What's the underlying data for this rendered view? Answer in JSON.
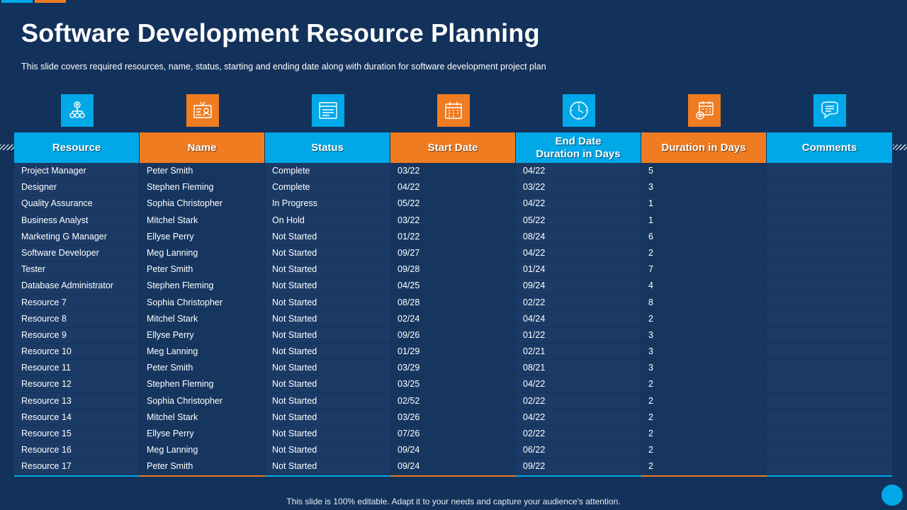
{
  "colors": {
    "blue": "#00a8e8",
    "orange": "#f07c22",
    "background": "#13325b"
  },
  "title": "Software Development Resource Planning",
  "subtitle": "This slide covers required resources, name, status, starting and ending date along with duration for software development  project plan",
  "icons": [
    {
      "name": "network-gear-icon",
      "color": "#00a8e8"
    },
    {
      "name": "id-card-icon",
      "color": "#f07c22"
    },
    {
      "name": "status-board-icon",
      "color": "#00a8e8"
    },
    {
      "name": "calendar-icon",
      "color": "#f07c22"
    },
    {
      "name": "clock-icon",
      "color": "#00a8e8"
    },
    {
      "name": "calendar-gear-icon",
      "color": "#f07c22"
    },
    {
      "name": "chat-bubble-icon",
      "color": "#00a8e8"
    }
  ],
  "table": {
    "headers": [
      "Resource",
      "Name",
      "Status",
      "Start Date",
      "End Date\nDuration in Days",
      "Duration in Days",
      "Comments"
    ],
    "header_colors": [
      "#00a8e8",
      "#f07c22",
      "#00a8e8",
      "#f07c22",
      "#00a8e8",
      "#f07c22",
      "#00a8e8"
    ],
    "rows": [
      [
        "Project Manager",
        "Peter Smith",
        "Complete",
        "03/22",
        "04/22",
        "5",
        ""
      ],
      [
        "Designer",
        "Stephen Fleming",
        "Complete",
        "04/22",
        "03/22",
        "3",
        ""
      ],
      [
        "Quality Assurance",
        "Sophia Christopher",
        "In Progress",
        "05/22",
        "04/22",
        "1",
        ""
      ],
      [
        "Business Analyst",
        "Mitchel Stark",
        "On Hold",
        "03/22",
        "05/22",
        "1",
        ""
      ],
      [
        "Marketing G Manager",
        "Ellyse Perry",
        "Not Started",
        "01/22",
        "08/24",
        "6",
        ""
      ],
      [
        "Software Developer",
        "Meg Lanning",
        "Not Started",
        "09/27",
        "04/22",
        "2",
        ""
      ],
      [
        "Tester",
        "Peter Smith",
        "Not Started",
        "09/28",
        "01/24",
        "7",
        ""
      ],
      [
        "Database Administrator",
        "Stephen Fleming",
        "Not Started",
        "04/25",
        "09/24",
        "4",
        ""
      ],
      [
        "Resource 7",
        "Sophia Christopher",
        "Not Started",
        "08/28",
        "02/22",
        "8",
        ""
      ],
      [
        "Resource 8",
        "Mitchel Stark",
        "Not Started",
        "02/24",
        "04/24",
        "2",
        ""
      ],
      [
        "Resource 9",
        "Ellyse Perry",
        "Not Started",
        "09/26",
        "01/22",
        "3",
        ""
      ],
      [
        "Resource 10",
        "Meg Lanning",
        "Not Started",
        "01/29",
        "02/21",
        "3",
        ""
      ],
      [
        "Resource 11",
        "Peter Smith",
        "Not Started",
        "03/29",
        "08/21",
        "3",
        ""
      ],
      [
        "Resource 12",
        "Stephen Fleming",
        "Not Started",
        "03/25",
        "04/22",
        "2",
        ""
      ],
      [
        "Resource 13",
        "Sophia Christopher",
        "Not Started",
        "02/52",
        "02/22",
        "2",
        ""
      ],
      [
        "Resource 14",
        "Mitchel Stark",
        "Not Started",
        "03/26",
        "04/22",
        "2",
        ""
      ],
      [
        "Resource 15",
        "Ellyse Perry",
        "Not Started",
        "07/26",
        "02/22",
        "2",
        ""
      ],
      [
        "Resource 16",
        "Meg Lanning",
        "Not Started",
        "09/24",
        "06/22",
        "2",
        ""
      ],
      [
        "Resource 17",
        "Peter Smith",
        "Not Started",
        "09/24",
        "09/22",
        "2",
        ""
      ]
    ]
  },
  "footer": "This slide is 100% editable. Adapt it to your needs and capture your audience's attention."
}
